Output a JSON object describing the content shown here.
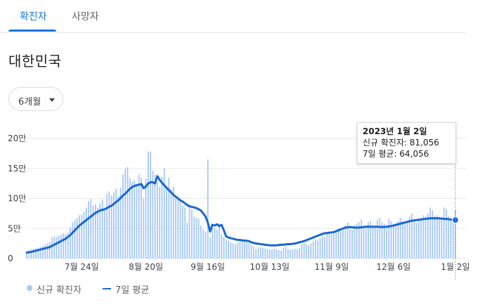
{
  "tabs": [
    {
      "label": "확진자",
      "selected": true
    },
    {
      "label": "사망자",
      "selected": false
    }
  ],
  "region_title": "대한민국",
  "period_select": {
    "value": "6개월"
  },
  "tooltip": {
    "date": "2023년 1월 2일",
    "cases_line": "신규 확진자: 81,056",
    "avg_line": "7일 평균: 64,056"
  },
  "legend": {
    "bars_label": "신규 확진자",
    "line_label": "7일 평균"
  },
  "colors": {
    "bar": "#a6c8fc",
    "line": "#1967d2",
    "accent": "#1a73e8"
  },
  "chart_data": {
    "type": "bar",
    "yticks": [
      {
        "value": 0,
        "label": "0"
      },
      {
        "value": 50000,
        "label": "5만"
      },
      {
        "value": 100000,
        "label": "10만"
      },
      {
        "value": 150000,
        "label": "15만"
      },
      {
        "value": 200000,
        "label": "20만"
      }
    ],
    "ylim": [
      0,
      200000
    ],
    "xticks": [
      {
        "index": 24,
        "label": "7월 24일"
      },
      {
        "index": 52,
        "label": "8월 20일"
      },
      {
        "index": 79,
        "label": "9월 16일"
      },
      {
        "index": 106,
        "label": "10월 13일"
      },
      {
        "index": 133,
        "label": "11월 9일"
      },
      {
        "index": 160,
        "label": "12월 6일"
      },
      {
        "index": 187,
        "label": "1월 2일"
      }
    ],
    "num_days": 188,
    "highlight_index": 187,
    "new_cases": [
      12000,
      14000,
      15000,
      16000,
      17000,
      18000,
      19000,
      21000,
      23000,
      25000,
      27000,
      35000,
      37000,
      36000,
      38000,
      40000,
      42000,
      41000,
      43000,
      52000,
      60000,
      64000,
      68000,
      72000,
      73000,
      78000,
      85000,
      96000,
      99000,
      88000,
      90000,
      85000,
      92000,
      98000,
      80000,
      108000,
      112000,
      105000,
      110000,
      116000,
      104000,
      118000,
      140000,
      150000,
      152000,
      134000,
      128000,
      130000,
      124000,
      140000,
      134000,
      100000,
      133000,
      178000,
      178000,
      146000,
      140000,
      127000,
      119000,
      136000,
      150000,
      120000,
      135000,
      115000,
      120000,
      105000,
      100000,
      97000,
      88000,
      85000,
      60000,
      90000,
      82000,
      70000,
      68000,
      66000,
      55000,
      48000,
      45000,
      165000,
      35000,
      50000,
      52000,
      48000,
      58000,
      40000,
      36000,
      32000,
      30000,
      27000,
      25000,
      24000,
      26000,
      28000,
      29000,
      28000,
      27000,
      26000,
      22000,
      20000,
      15000,
      18000,
      19000,
      18000,
      17000,
      16000,
      15000,
      15000,
      17000,
      15000,
      14000,
      13000,
      18000,
      20000,
      16000,
      14000,
      15000,
      16000,
      15000,
      18000,
      24000,
      26000,
      24000,
      22000,
      25000,
      28000,
      32000,
      30000,
      34000,
      38000,
      36000,
      42000,
      45000,
      40000,
      42000,
      48000,
      50000,
      46000,
      48000,
      55000,
      60000,
      50000,
      48000,
      56000,
      58000,
      60000,
      65000,
      52000,
      50000,
      60000,
      62000,
      54000,
      52000,
      65000,
      68000,
      60000,
      58000,
      52000,
      66000,
      62000,
      56000,
      58000,
      62000,
      68000,
      62000,
      58000,
      60000,
      70000,
      75000,
      65000,
      60000,
      66000,
      68000,
      72000,
      70000,
      75000,
      85000,
      80000,
      70000,
      72000,
      66000,
      68000,
      85000,
      82000,
      70000,
      66000,
      64000,
      81056
    ],
    "seven_day_avg": [
      10000,
      10500,
      11000,
      12000,
      13000,
      14000,
      15000,
      16000,
      17000,
      18000,
      19000,
      21000,
      23000,
      25000,
      27000,
      29000,
      31000,
      33000,
      36000,
      39000,
      43000,
      47000,
      51000,
      55000,
      58000,
      61000,
      64000,
      67000,
      70000,
      73000,
      76000,
      78000,
      80000,
      81000,
      82000,
      84000,
      86000,
      88000,
      91000,
      94000,
      97000,
      101000,
      105000,
      108000,
      112000,
      116000,
      119000,
      121000,
      122000,
      123000,
      124000,
      117000,
      120000,
      125000,
      127000,
      127000,
      125000,
      137000,
      131000,
      126000,
      122000,
      118000,
      114000,
      110000,
      106000,
      103000,
      100000,
      97000,
      95000,
      92000,
      89000,
      87000,
      86000,
      85000,
      84000,
      82000,
      80000,
      75000,
      70000,
      60000,
      45000,
      56000,
      55000,
      57000,
      54000,
      56000,
      47000,
      37000,
      35000,
      34000,
      33000,
      32000,
      31000,
      31000,
      30000,
      30000,
      29500,
      29000,
      27000,
      26000,
      25000,
      24500,
      24000,
      23500,
      23000,
      22500,
      22000,
      22000,
      22000,
      22000,
      22500,
      23000,
      23000,
      23500,
      24000,
      24000,
      24500,
      25000,
      26000,
      27000,
      28000,
      29000,
      30500,
      32000,
      33500,
      35000,
      36500,
      38000,
      39500,
      41000,
      42000,
      42500,
      43000,
      43500,
      44000,
      45500,
      47000,
      48500,
      50000,
      51500,
      52000,
      52500,
      52000,
      51500,
      51500,
      51500,
      52000,
      52500,
      53000,
      53000,
      53000,
      53000,
      53000,
      53000,
      52500,
      52500,
      52500,
      53000,
      53500,
      54000,
      55000,
      56000,
      57000,
      58000,
      59000,
      60000,
      61000,
      62000,
      63000,
      63500,
      64000,
      64500,
      65000,
      65500,
      66000,
      66500,
      67000,
      67000,
      67000,
      67000,
      67000,
      66500,
      66000,
      66000,
      65500,
      65000,
      64500,
      64056
    ]
  }
}
